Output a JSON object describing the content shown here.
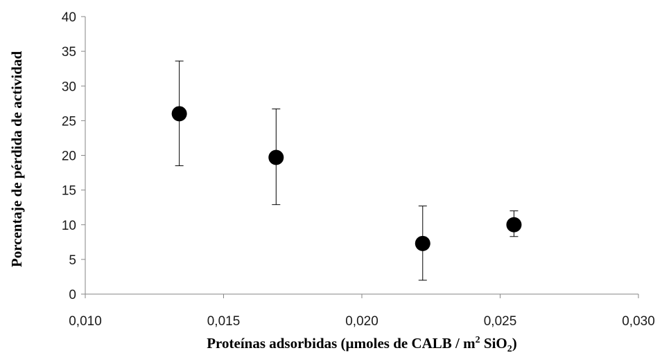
{
  "chart_data": {
    "type": "scatter",
    "xlabel": "Proteínas adsorbidas (µmoles de CALB / m",
    "xlabel_sup": "2",
    "xlabel_mid": " SiO",
    "xlabel_sub": "2",
    "xlabel_end": ")",
    "ylabel": "Porcentaje de pérdida  de actividad",
    "xlim": [
      0.01,
      0.03
    ],
    "ylim": [
      0,
      40
    ],
    "x_ticks": [
      0.01,
      0.015,
      0.02,
      0.025,
      0.03
    ],
    "x_tick_labels": [
      "0,010",
      "0,015",
      "0,020",
      "0,025",
      "0,030"
    ],
    "y_ticks": [
      0,
      5,
      10,
      15,
      20,
      25,
      30,
      35,
      40
    ],
    "y_tick_labels": [
      "0",
      "5",
      "10",
      "15",
      "20",
      "25",
      "30",
      "35",
      "40"
    ],
    "grid": false,
    "legend": "none",
    "series": [
      {
        "marker_color": "#000000",
        "points": [
          {
            "x": 0.0134,
            "y": 26.0,
            "err_low": 18.5,
            "err_high": 33.6
          },
          {
            "x": 0.0169,
            "y": 19.7,
            "err_low": 12.9,
            "err_high": 26.7
          },
          {
            "x": 0.0222,
            "y": 7.3,
            "err_low": 2.0,
            "err_high": 12.7
          },
          {
            "x": 0.0255,
            "y": 10.0,
            "err_low": 8.3,
            "err_high": 12.0
          }
        ]
      }
    ]
  }
}
